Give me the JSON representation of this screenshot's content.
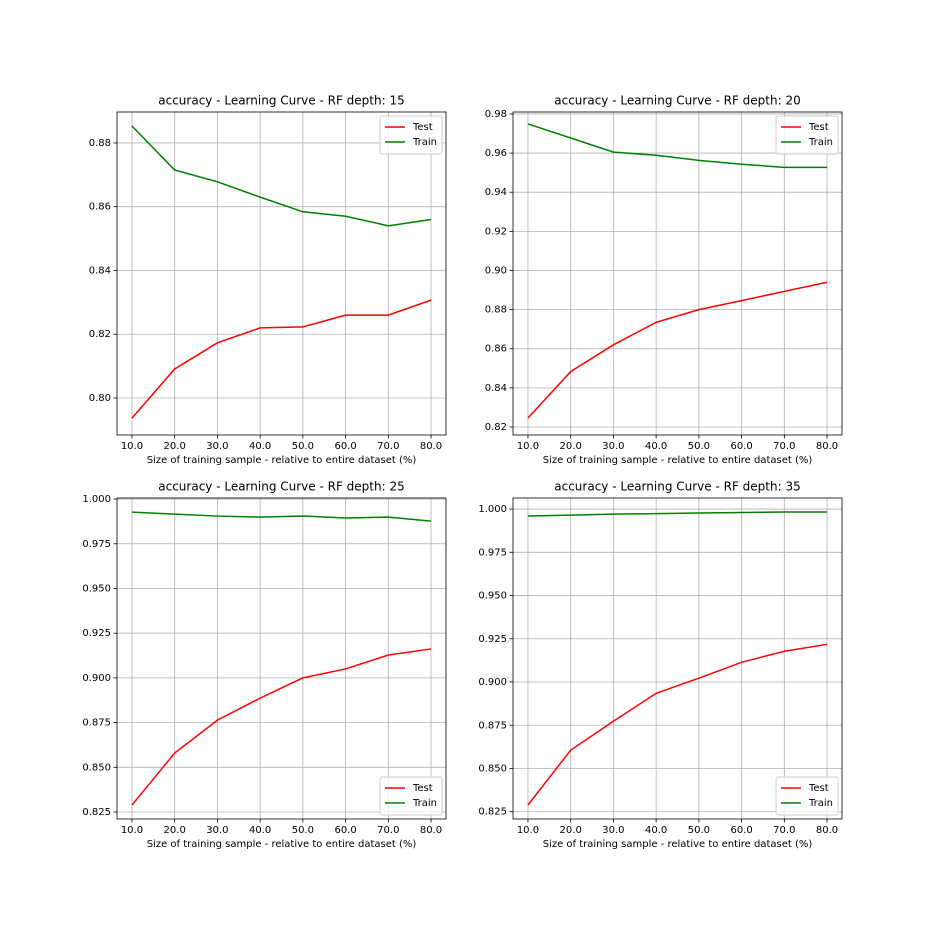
{
  "chart_data": [
    {
      "type": "line",
      "title": "accuracy - Learning Curve - RF depth: 15",
      "xlabel": "Size of training sample - relative to entire dataset (%)",
      "x": [
        10,
        20,
        30,
        40,
        50,
        60,
        70,
        80
      ],
      "series": [
        {
          "name": "Test",
          "color": "#ff0000",
          "values": [
            0.7937,
            0.8091,
            0.8173,
            0.822,
            0.8223,
            0.826,
            0.826,
            0.8307
          ]
        },
        {
          "name": "Train",
          "color": "#008000",
          "values": [
            0.8853,
            0.8715,
            0.8678,
            0.863,
            0.8584,
            0.857,
            0.854,
            0.856
          ]
        }
      ],
      "xlim": [
        6.5,
        83.5
      ],
      "xticks": [
        {
          "value": 10,
          "label": "10.0"
        },
        {
          "value": 20,
          "label": "20.0"
        },
        {
          "value": 30,
          "label": "30.0"
        },
        {
          "value": 40,
          "label": "40.0"
        },
        {
          "value": 50,
          "label": "50.0"
        },
        {
          "value": 60,
          "label": "60.0"
        },
        {
          "value": 70,
          "label": "70.0"
        },
        {
          "value": 80,
          "label": "80.0"
        }
      ],
      "ylim": [
        0.7884,
        0.8897
      ],
      "yticks": [
        {
          "value": 0.8,
          "label": "0.80"
        },
        0.82,
        0.84,
        0.86,
        0.88
      ],
      "grid": true,
      "legend": "upper right"
    },
    {
      "type": "line",
      "title": "accuracy - Learning Curve - RF depth: 20",
      "xlabel": "Size of training sample - relative to entire dataset (%)",
      "x": [
        10,
        20,
        30,
        40,
        50,
        60,
        70,
        80
      ],
      "series": [
        {
          "name": "Test",
          "color": "#ff0000",
          "values": [
            0.8246,
            0.8483,
            0.862,
            0.8735,
            0.88,
            0.8846,
            0.8893,
            0.894
          ]
        },
        {
          "name": "Train",
          "color": "#008000",
          "values": [
            0.9749,
            0.9677,
            0.9605,
            0.9589,
            0.9563,
            0.9543,
            0.9527,
            0.9527
          ]
        }
      ],
      "xlim": [
        6.5,
        83.5
      ],
      "xticks": [
        {
          "value": 10,
          "label": "10.0"
        },
        {
          "value": 20,
          "label": "20.0"
        },
        {
          "value": 30,
          "label": "30.0"
        },
        {
          "value": 40,
          "label": "40.0"
        },
        {
          "value": 50,
          "label": "50.0"
        },
        {
          "value": 60,
          "label": "60.0"
        },
        {
          "value": 70,
          "label": "70.0"
        },
        {
          "value": 80,
          "label": "80.0"
        }
      ],
      "ylim": [
        0.8159,
        0.981
      ],
      "yticks": [
        0.82,
        0.84,
        0.86,
        0.88,
        {
          "value": 0.9,
          "label": "0.90"
        },
        0.92,
        0.94,
        0.96,
        0.98
      ],
      "grid": true,
      "legend": "upper right"
    },
    {
      "type": "line",
      "title": "accuracy - Learning Curve - RF depth: 25",
      "xlabel": "Size of training sample - relative to entire dataset (%)",
      "x": [
        10,
        20,
        30,
        40,
        50,
        60,
        70,
        80
      ],
      "series": [
        {
          "name": "Test",
          "color": "#ff0000",
          "values": [
            0.8289,
            0.858,
            0.8764,
            0.8887,
            0.9,
            0.905,
            0.9128,
            0.9162
          ]
        },
        {
          "name": "Train",
          "color": "#008000",
          "values": [
            0.9927,
            0.9916,
            0.9905,
            0.9899,
            0.9905,
            0.9894,
            0.9899,
            0.9877
          ]
        }
      ],
      "xlim": [
        6.5,
        83.5
      ],
      "xticks": [
        {
          "value": 10,
          "label": "10.0"
        },
        {
          "value": 20,
          "label": "20.0"
        },
        {
          "value": 30,
          "label": "30.0"
        },
        {
          "value": 40,
          "label": "40.0"
        },
        {
          "value": 50,
          "label": "50.0"
        },
        {
          "value": 60,
          "label": "60.0"
        },
        {
          "value": 70,
          "label": "70.0"
        },
        {
          "value": 80,
          "label": "80.0"
        }
      ],
      "ylim": [
        0.8211,
        1.0006
      ],
      "yticks": [
        0.825,
        {
          "value": 0.85,
          "label": "0.850"
        },
        0.875,
        {
          "value": 0.9,
          "label": "0.900"
        },
        0.925,
        {
          "value": 0.95,
          "label": "0.950"
        },
        0.975,
        {
          "value": 1,
          "label": "1.000"
        }
      ],
      "grid": true,
      "legend": "lower right"
    },
    {
      "type": "line",
      "title": "accuracy - Learning Curve - RF depth: 35",
      "xlabel": "Size of training sample - relative to entire dataset (%)",
      "x": [
        10,
        20,
        30,
        40,
        50,
        60,
        70,
        80
      ],
      "series": [
        {
          "name": "Test",
          "color": "#ff0000",
          "values": [
            0.8289,
            0.8606,
            0.8773,
            0.8935,
            0.9022,
            0.9114,
            0.9178,
            0.9218
          ]
        },
        {
          "name": "Train",
          "color": "#008000",
          "values": [
            0.996,
            0.9965,
            0.9971,
            0.9974,
            0.9977,
            0.998,
            0.9983,
            0.9983
          ]
        }
      ],
      "xlim": [
        6.5,
        83.5
      ],
      "xticks": [
        {
          "value": 10,
          "label": "10.0"
        },
        {
          "value": 20,
          "label": "20.0"
        },
        {
          "value": 30,
          "label": "30.0"
        },
        {
          "value": 40,
          "label": "40.0"
        },
        {
          "value": 50,
          "label": "50.0"
        },
        {
          "value": 60,
          "label": "60.0"
        },
        {
          "value": 70,
          "label": "70.0"
        },
        {
          "value": 80,
          "label": "80.0"
        }
      ],
      "ylim": [
        0.8208,
        1.0064
      ],
      "yticks": [
        0.825,
        {
          "value": 0.85,
          "label": "0.850"
        },
        0.875,
        {
          "value": 0.9,
          "label": "0.900"
        },
        0.925,
        {
          "value": 0.95,
          "label": "0.950"
        },
        0.975,
        {
          "value": 1,
          "label": "1.000"
        }
      ],
      "grid": true,
      "legend": "lower right"
    }
  ]
}
